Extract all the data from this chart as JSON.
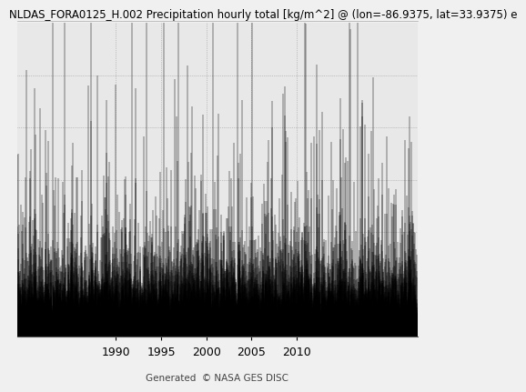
{
  "title": "NLDAS_FORA0125_H.002 Precipitation hourly total [kg/m^2] @ (lon=-86.9375, lat=33.9375) e",
  "x_start_year": 1979.04,
  "x_end_year": 2023.42,
  "x_ticks": [
    1990,
    1995,
    2000,
    2005,
    2010
  ],
  "bar_color": "#000000",
  "background_color": "#f0f0f0",
  "plot_bg_color": "#e8e8e8",
  "grid_color": "#999999",
  "footer_text": "Generated  © NASA GES DISC",
  "title_fontsize": 8.5,
  "tick_fontsize": 9,
  "footer_fontsize": 7.5,
  "ylim_max": 30,
  "seed": 42
}
